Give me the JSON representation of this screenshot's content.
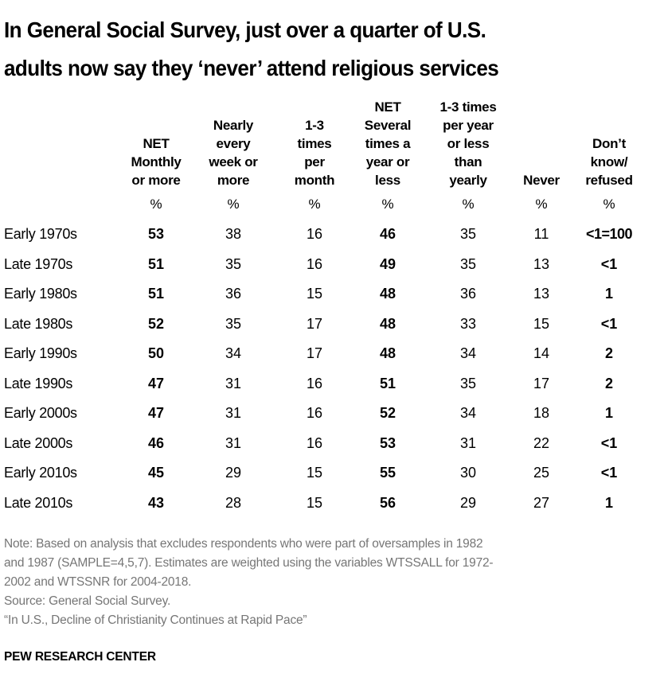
{
  "chart_data": {
    "type": "table",
    "title": [
      "In General Social Survey, just over a quarter of U.S.",
      "adults now say they ‘never’ attend religious services"
    ],
    "columns": [
      {
        "header": "NET\nMonthly\nor more",
        "unit": "%",
        "bold": true
      },
      {
        "header": "Nearly\nevery\nweek or\nmore",
        "unit": "%",
        "bold": false
      },
      {
        "header": "1-3\ntimes\nper\nmonth",
        "unit": "%",
        "bold": false
      },
      {
        "header": "NET\nSeveral\ntimes a\nyear or\nless",
        "unit": "%",
        "bold": true
      },
      {
        "header": "1-3 times\nper year\nor less\nthan\nyearly",
        "unit": "%",
        "bold": false
      },
      {
        "header": "Never",
        "unit": "%",
        "bold": false
      },
      {
        "header": "Don’t\nknow/\nrefused",
        "unit": "%",
        "bold": true
      }
    ],
    "rows": [
      {
        "label": "Early 1970s",
        "values": [
          "53",
          "38",
          "16",
          "46",
          "35",
          "11",
          "<1=100"
        ]
      },
      {
        "label": "Late 1970s",
        "values": [
          "51",
          "35",
          "16",
          "49",
          "35",
          "13",
          "<1"
        ]
      },
      {
        "label": "Early 1980s",
        "values": [
          "51",
          "36",
          "15",
          "48",
          "36",
          "13",
          "1"
        ]
      },
      {
        "label": "Late 1980s",
        "values": [
          "52",
          "35",
          "17",
          "48",
          "33",
          "15",
          "<1"
        ]
      },
      {
        "label": "Early 1990s",
        "values": [
          "50",
          "34",
          "17",
          "48",
          "34",
          "14",
          "2"
        ]
      },
      {
        "label": "Late 1990s",
        "values": [
          "47",
          "31",
          "16",
          "51",
          "35",
          "17",
          "2"
        ]
      },
      {
        "label": "Early 2000s",
        "values": [
          "47",
          "31",
          "16",
          "52",
          "34",
          "18",
          "1"
        ]
      },
      {
        "label": "Late 2000s",
        "values": [
          "46",
          "31",
          "16",
          "53",
          "31",
          "22",
          "<1"
        ]
      },
      {
        "label": "Early 2010s",
        "values": [
          "45",
          "29",
          "15",
          "55",
          "30",
          "25",
          "<1"
        ]
      },
      {
        "label": "Late 2010s",
        "values": [
          "43",
          "28",
          "15",
          "56",
          "29",
          "27",
          "1"
        ]
      }
    ]
  },
  "footer": {
    "note_lines": [
      "Note: Based on analysis that excludes respondents who were part of oversamples in 1982",
      "and 1987 (SAMPLE=4,5,7). Estimates are weighted using the variables WTSSALL for 1972-",
      "2002 and WTSSNR for 2004-2018."
    ],
    "source": "Source: General Social Survey.",
    "report": "“In U.S., Decline of Christianity Continues at Rapid Pace”",
    "brand": "PEW RESEARCH CENTER"
  }
}
